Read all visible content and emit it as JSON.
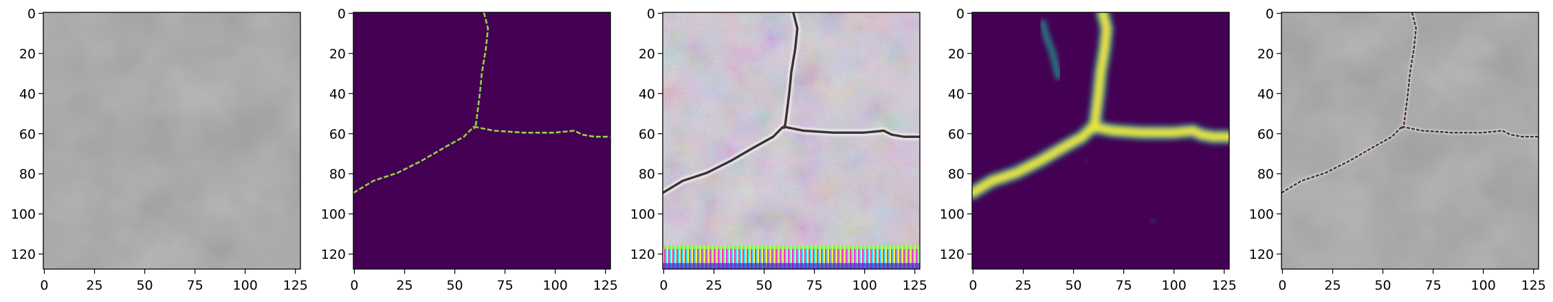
{
  "figure": {
    "panels": [
      {
        "id": "p1",
        "content": "concrete-photo"
      },
      {
        "id": "p2",
        "content": "mask"
      },
      {
        "id": "p3",
        "content": "generated"
      },
      {
        "id": "p4",
        "content": "heatmap"
      },
      {
        "id": "p5",
        "content": "overlay"
      }
    ],
    "x_ticks": [
      "0",
      "25",
      "50",
      "75",
      "100",
      "125"
    ],
    "y_ticks": [
      "0",
      "20",
      "40",
      "60",
      "80",
      "100",
      "120"
    ],
    "x_tick_values": [
      0,
      25,
      50,
      75,
      100,
      125
    ],
    "y_tick_values": [
      0,
      20,
      40,
      60,
      80,
      100,
      120
    ],
    "axis_range": [
      0,
      128
    ],
    "colors": {
      "concrete": "#8f8f8f",
      "mask_background": "#440154",
      "mask_crack": "#90d743",
      "heat_background": "#440154",
      "heat_peak": "#fde725",
      "heat_mid": "#21918c",
      "crack_dark": "#3a3530"
    }
  }
}
